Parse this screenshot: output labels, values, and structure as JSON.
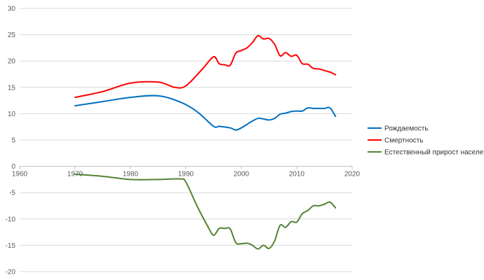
{
  "chart_data": {
    "type": "line",
    "title": "",
    "xlabel": "",
    "ylabel": "",
    "xlim": [
      1960,
      2020
    ],
    "ylim": [
      -20,
      30
    ],
    "x_ticks": [
      1960,
      1970,
      1980,
      1990,
      2000,
      2010,
      2020
    ],
    "y_ticks": [
      30,
      25,
      20,
      15,
      10,
      5,
      0,
      -5,
      -10,
      -15,
      -20
    ],
    "grid": "horizontal",
    "legend_position": "right",
    "series": [
      {
        "name": "Рождаемость",
        "color": "#0070c0",
        "points": [
          [
            1970,
            11.5
          ],
          [
            1975,
            12.3
          ],
          [
            1980,
            13.1
          ],
          [
            1985,
            13.4
          ],
          [
            1989,
            12.2
          ],
          [
            1992,
            10.4
          ],
          [
            1995,
            7.6
          ],
          [
            1996,
            7.6
          ],
          [
            1998,
            7.3
          ],
          [
            1999,
            6.9
          ],
          [
            2000,
            7.3
          ],
          [
            2002,
            8.6
          ],
          [
            2003,
            9.1
          ],
          [
            2004,
            9.0
          ],
          [
            2005,
            8.8
          ],
          [
            2006,
            9.1
          ],
          [
            2007,
            9.9
          ],
          [
            2008,
            10.1
          ],
          [
            2009,
            10.4
          ],
          [
            2010,
            10.5
          ],
          [
            2011,
            10.5
          ],
          [
            2012,
            11.1
          ],
          [
            2013,
            11.0
          ],
          [
            2014,
            11.0
          ],
          [
            2015,
            11.0
          ],
          [
            2016,
            11.1
          ],
          [
            2017,
            9.5
          ]
        ]
      },
      {
        "name": "Смертность",
        "color": "#ff0000",
        "points": [
          [
            1970,
            13.1
          ],
          [
            1975,
            14.2
          ],
          [
            1980,
            15.8
          ],
          [
            1985,
            16.0
          ],
          [
            1988,
            15.0
          ],
          [
            1990,
            15.3
          ],
          [
            1993,
            18.5
          ],
          [
            1995,
            20.8
          ],
          [
            1996,
            19.5
          ],
          [
            1997,
            19.3
          ],
          [
            1998,
            19.2
          ],
          [
            1999,
            21.5
          ],
          [
            2000,
            22.0
          ],
          [
            2001,
            22.5
          ],
          [
            2002,
            23.5
          ],
          [
            2003,
            24.8
          ],
          [
            2004,
            24.2
          ],
          [
            2005,
            24.3
          ],
          [
            2006,
            23.2
          ],
          [
            2007,
            21.0
          ],
          [
            2008,
            21.6
          ],
          [
            2009,
            20.9
          ],
          [
            2010,
            21.1
          ],
          [
            2011,
            19.5
          ],
          [
            2012,
            19.4
          ],
          [
            2013,
            18.6
          ],
          [
            2014,
            18.5
          ],
          [
            2015,
            18.2
          ],
          [
            2016,
            17.9
          ],
          [
            2017,
            17.4
          ]
        ]
      },
      {
        "name": "Естественный прирост населения",
        "color": "#548235",
        "points": [
          [
            1970,
            -1.5
          ],
          [
            1975,
            -1.9
          ],
          [
            1980,
            -2.5
          ],
          [
            1985,
            -2.5
          ],
          [
            1989,
            -2.4
          ],
          [
            1990,
            -3.0
          ],
          [
            1992,
            -7.5
          ],
          [
            1994,
            -11.5
          ],
          [
            1995,
            -13.1
          ],
          [
            1996,
            -11.8
          ],
          [
            1997,
            -11.8
          ],
          [
            1998,
            -11.9
          ],
          [
            1999,
            -14.5
          ],
          [
            2000,
            -14.7
          ],
          [
            2001,
            -14.6
          ],
          [
            2002,
            -15.0
          ],
          [
            2003,
            -15.7
          ],
          [
            2004,
            -15.0
          ],
          [
            2005,
            -15.6
          ],
          [
            2006,
            -14.2
          ],
          [
            2007,
            -11.2
          ],
          [
            2008,
            -11.6
          ],
          [
            2009,
            -10.5
          ],
          [
            2010,
            -10.6
          ],
          [
            2011,
            -9.0
          ],
          [
            2012,
            -8.4
          ],
          [
            2013,
            -7.5
          ],
          [
            2014,
            -7.5
          ],
          [
            2015,
            -7.2
          ],
          [
            2016,
            -6.8
          ],
          [
            2017,
            -7.9
          ]
        ]
      }
    ]
  }
}
